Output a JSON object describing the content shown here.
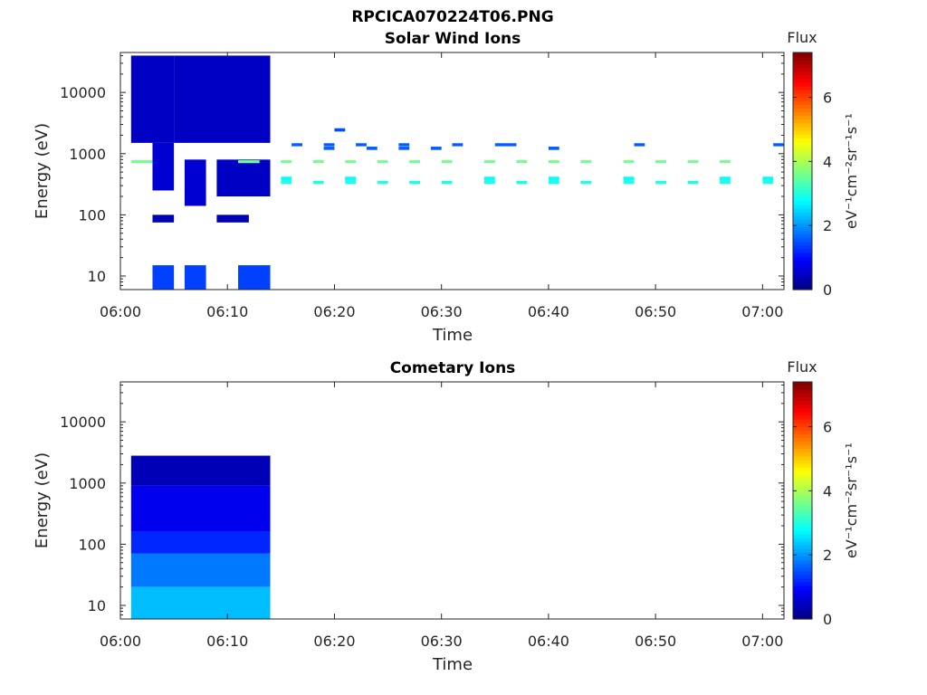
{
  "figure_title": "RPCICA070224T06.PNG",
  "colors": {
    "axis": "#262626",
    "colormap": [
      "#00007f",
      "#0000ff",
      "#007fff",
      "#00ffff",
      "#7fff7f",
      "#ffff00",
      "#ff7f00",
      "#ff0000",
      "#7f0000"
    ]
  },
  "chart_data": [
    {
      "type": "heatmap",
      "title": "Solar Wind Ions",
      "xlabel": "Time",
      "ylabel": "Energy (eV)",
      "x_range": [
        "06:00",
        "07:02"
      ],
      "x_ticks": [
        "06:00",
        "06:10",
        "06:20",
        "06:30",
        "06:40",
        "06:50",
        "07:00"
      ],
      "y_scale": "log",
      "y_range": [
        6,
        45000
      ],
      "y_ticks": [
        10,
        100,
        1000,
        10000
      ],
      "y_tick_labels": [
        "10",
        "100",
        "1000",
        "10000"
      ],
      "colorbar": {
        "title": "Flux",
        "label": "eV⁻¹cm⁻²sr⁻¹s⁻¹",
        "range": [
          0,
          7.4
        ],
        "ticks": [
          0,
          2,
          4,
          6
        ],
        "tick_labels": [
          "0",
          "2",
          "4",
          "6"
        ]
      },
      "cells": [
        {
          "t0": "06:01",
          "t1": "06:05",
          "e_min": 1500,
          "e_max": 40000,
          "flux": 0.5
        },
        {
          "t0": "06:05",
          "t1": "06:14",
          "e_min": 1500,
          "e_max": 40000,
          "flux": 0.5
        },
        {
          "t0": "06:03",
          "t1": "06:05",
          "e_min": 250,
          "e_max": 1500,
          "flux": 0.6
        },
        {
          "t0": "06:06",
          "t1": "06:08",
          "e_min": 140,
          "e_max": 800,
          "flux": 0.6
        },
        {
          "t0": "06:09",
          "t1": "06:14",
          "e_min": 200,
          "e_max": 800,
          "flux": 0.5
        },
        {
          "t0": "06:03",
          "t1": "06:05",
          "e_min": 75,
          "e_max": 100,
          "flux": 0.4
        },
        {
          "t0": "06:09",
          "t1": "06:12",
          "e_min": 75,
          "e_max": 100,
          "flux": 0.4
        },
        {
          "t0": "06:03",
          "t1": "06:05",
          "e_min": 6,
          "e_max": 15,
          "flux": 1.4
        },
        {
          "t0": "06:06",
          "t1": "06:08",
          "e_min": 6,
          "e_max": 15,
          "flux": 1.4
        },
        {
          "t0": "06:11",
          "t1": "06:14",
          "e_min": 6,
          "e_max": 15,
          "flux": 1.4
        },
        {
          "t0": "06:01",
          "t1": "06:03",
          "e_min": 700,
          "e_max": 780,
          "flux": 3.6
        },
        {
          "t0": "06:11",
          "t1": "06:13",
          "e_min": 700,
          "e_max": 780,
          "flux": 3.6
        },
        {
          "t0": "06:15",
          "t1": "06:16",
          "e_min": 700,
          "e_max": 780,
          "flux": 3.6
        },
        {
          "t0": "06:18",
          "t1": "06:19",
          "e_min": 700,
          "e_max": 780,
          "flux": 3.6
        },
        {
          "t0": "06:21",
          "t1": "06:22",
          "e_min": 700,
          "e_max": 780,
          "flux": 3.6
        },
        {
          "t0": "06:24",
          "t1": "06:25",
          "e_min": 700,
          "e_max": 780,
          "flux": 3.6
        },
        {
          "t0": "06:27",
          "t1": "06:28",
          "e_min": 700,
          "e_max": 780,
          "flux": 3.6
        },
        {
          "t0": "06:30",
          "t1": "06:31",
          "e_min": 700,
          "e_max": 780,
          "flux": 3.6
        },
        {
          "t0": "06:34",
          "t1": "06:35",
          "e_min": 700,
          "e_max": 780,
          "flux": 3.6
        },
        {
          "t0": "06:37",
          "t1": "06:38",
          "e_min": 700,
          "e_max": 780,
          "flux": 3.6
        },
        {
          "t0": "06:40",
          "t1": "06:41",
          "e_min": 700,
          "e_max": 780,
          "flux": 3.6
        },
        {
          "t0": "06:43",
          "t1": "06:44",
          "e_min": 700,
          "e_max": 780,
          "flux": 3.6
        },
        {
          "t0": "06:47",
          "t1": "06:48",
          "e_min": 700,
          "e_max": 780,
          "flux": 3.6
        },
        {
          "t0": "06:50",
          "t1": "06:51",
          "e_min": 700,
          "e_max": 780,
          "flux": 3.6
        },
        {
          "t0": "06:53",
          "t1": "06:54",
          "e_min": 700,
          "e_max": 780,
          "flux": 3.6
        },
        {
          "t0": "06:56",
          "t1": "06:57",
          "e_min": 700,
          "e_max": 780,
          "flux": 3.6
        },
        {
          "t0": "06:15",
          "t1": "06:16",
          "e_min": 360,
          "e_max": 420,
          "flux": 2.8
        },
        {
          "t0": "06:21",
          "t1": "06:22",
          "e_min": 360,
          "e_max": 420,
          "flux": 2.8
        },
        {
          "t0": "06:34",
          "t1": "06:35",
          "e_min": 360,
          "e_max": 420,
          "flux": 2.8
        },
        {
          "t0": "06:40",
          "t1": "06:41",
          "e_min": 360,
          "e_max": 420,
          "flux": 2.8
        },
        {
          "t0": "06:47",
          "t1": "06:48",
          "e_min": 360,
          "e_max": 420,
          "flux": 2.8
        },
        {
          "t0": "06:56",
          "t1": "06:57",
          "e_min": 360,
          "e_max": 420,
          "flux": 2.8
        },
        {
          "t0": "07:00",
          "t1": "07:01",
          "e_min": 360,
          "e_max": 420,
          "flux": 2.8
        },
        {
          "t0": "06:15",
          "t1": "06:16",
          "e_min": 320,
          "e_max": 360,
          "flux": 3.0
        },
        {
          "t0": "06:18",
          "t1": "06:19",
          "e_min": 320,
          "e_max": 360,
          "flux": 3.0
        },
        {
          "t0": "06:21",
          "t1": "06:22",
          "e_min": 320,
          "e_max": 360,
          "flux": 3.0
        },
        {
          "t0": "06:24",
          "t1": "06:25",
          "e_min": 320,
          "e_max": 360,
          "flux": 3.0
        },
        {
          "t0": "06:27",
          "t1": "06:28",
          "e_min": 320,
          "e_max": 360,
          "flux": 3.0
        },
        {
          "t0": "06:30",
          "t1": "06:31",
          "e_min": 320,
          "e_max": 360,
          "flux": 3.0
        },
        {
          "t0": "06:34",
          "t1": "06:35",
          "e_min": 320,
          "e_max": 360,
          "flux": 3.0
        },
        {
          "t0": "06:37",
          "t1": "06:38",
          "e_min": 320,
          "e_max": 360,
          "flux": 3.0
        },
        {
          "t0": "06:40",
          "t1": "06:41",
          "e_min": 320,
          "e_max": 360,
          "flux": 3.0
        },
        {
          "t0": "06:43",
          "t1": "06:44",
          "e_min": 320,
          "e_max": 360,
          "flux": 3.0
        },
        {
          "t0": "06:47",
          "t1": "06:48",
          "e_min": 320,
          "e_max": 360,
          "flux": 3.0
        },
        {
          "t0": "06:50",
          "t1": "06:51",
          "e_min": 320,
          "e_max": 360,
          "flux": 3.0
        },
        {
          "t0": "06:53",
          "t1": "06:54",
          "e_min": 320,
          "e_max": 360,
          "flux": 3.0
        },
        {
          "t0": "06:56",
          "t1": "06:57",
          "e_min": 320,
          "e_max": 360,
          "flux": 3.0
        },
        {
          "t0": "07:00",
          "t1": "07:01",
          "e_min": 320,
          "e_max": 360,
          "flux": 3.0
        },
        {
          "t0": "06:16",
          "t1": "06:17",
          "e_min": 1320,
          "e_max": 1480,
          "flux": 1.6
        },
        {
          "t0": "06:19",
          "t1": "06:20",
          "e_min": 1320,
          "e_max": 1480,
          "flux": 1.6
        },
        {
          "t0": "06:22",
          "t1": "06:23",
          "e_min": 1320,
          "e_max": 1480,
          "flux": 1.6
        },
        {
          "t0": "06:26",
          "t1": "06:27",
          "e_min": 1320,
          "e_max": 1480,
          "flux": 1.6
        },
        {
          "t0": "06:31",
          "t1": "06:32",
          "e_min": 1320,
          "e_max": 1480,
          "flux": 1.6
        },
        {
          "t0": "06:35",
          "t1": "06:37",
          "e_min": 1320,
          "e_max": 1480,
          "flux": 1.6
        },
        {
          "t0": "06:48",
          "t1": "06:49",
          "e_min": 1320,
          "e_max": 1480,
          "flux": 1.6
        },
        {
          "t0": "07:01",
          "t1": "07:02",
          "e_min": 1320,
          "e_max": 1480,
          "flux": 1.6
        },
        {
          "t0": "06:19",
          "t1": "06:20",
          "e_min": 1150,
          "e_max": 1300,
          "flux": 1.6
        },
        {
          "t0": "06:23",
          "t1": "06:24",
          "e_min": 1150,
          "e_max": 1300,
          "flux": 1.6
        },
        {
          "t0": "06:26",
          "t1": "06:27",
          "e_min": 1150,
          "e_max": 1300,
          "flux": 1.6
        },
        {
          "t0": "06:29",
          "t1": "06:30",
          "e_min": 1150,
          "e_max": 1300,
          "flux": 1.6
        },
        {
          "t0": "06:40",
          "t1": "06:41",
          "e_min": 1150,
          "e_max": 1300,
          "flux": 1.6
        },
        {
          "t0": "06:20",
          "t1": "06:21",
          "e_min": 2300,
          "e_max": 2600,
          "flux": 1.5
        }
      ]
    },
    {
      "type": "heatmap",
      "title": "Cometary Ions",
      "xlabel": "Time",
      "ylabel": "Energy (eV)",
      "x_range": [
        "06:00",
        "07:02"
      ],
      "x_ticks": [
        "06:00",
        "06:10",
        "06:20",
        "06:30",
        "06:40",
        "06:50",
        "07:00"
      ],
      "y_scale": "log",
      "y_range": [
        6,
        45000
      ],
      "y_ticks": [
        10,
        100,
        1000,
        10000
      ],
      "y_tick_labels": [
        "10",
        "100",
        "1000",
        "10000"
      ],
      "colorbar": {
        "title": "Flux",
        "label": "eV⁻¹cm⁻²sr⁻¹s⁻¹",
        "range": [
          0,
          7.4
        ],
        "ticks": [
          0,
          2,
          4,
          6
        ],
        "tick_labels": [
          "0",
          "2",
          "4",
          "6"
        ]
      },
      "cells": [
        {
          "t0": "06:01",
          "t1": "06:14",
          "e_min": 900,
          "e_max": 2800,
          "flux": 0.4
        },
        {
          "t0": "06:01",
          "t1": "06:14",
          "e_min": 160,
          "e_max": 900,
          "flux": 0.8
        },
        {
          "t0": "06:01",
          "t1": "06:14",
          "e_min": 70,
          "e_max": 160,
          "flux": 1.2
        },
        {
          "t0": "06:01",
          "t1": "06:14",
          "e_min": 20,
          "e_max": 70,
          "flux": 1.8
        },
        {
          "t0": "06:01",
          "t1": "06:14",
          "e_min": 6,
          "e_max": 20,
          "flux": 2.3
        }
      ]
    }
  ]
}
